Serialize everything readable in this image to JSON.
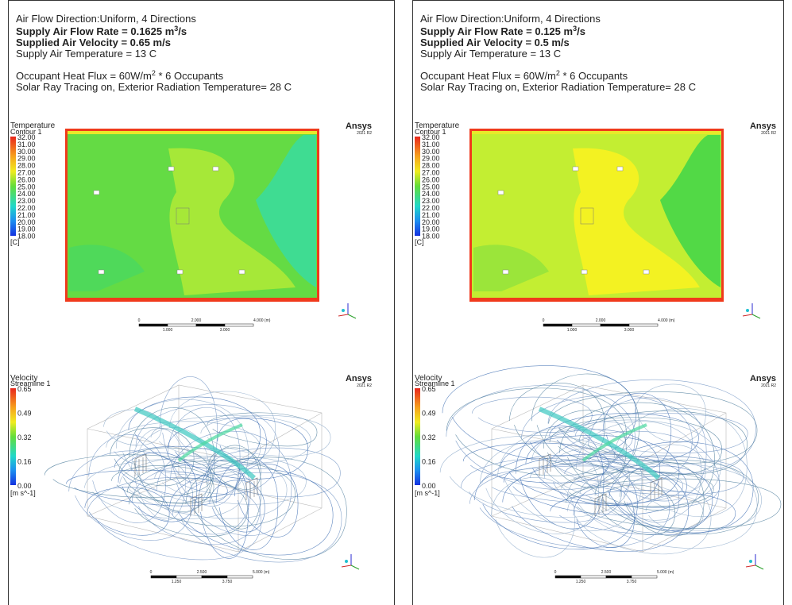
{
  "panels": [
    {
      "header": {
        "direction": "Air Flow Direction:Uniform, 4 Directions",
        "flow_rate": {
          "text": "Supply Air Flow Rate = 0.1625 m",
          "sup": "3",
          "suffix": "/s"
        },
        "velocity": "Supplied Air Velocity = 0.65 m/s",
        "temperature": "Supply Air Temperature = 13 C",
        "heat_flux": {
          "text": "Occupant Heat Flux = 60W/m",
          "sup": "2",
          "suffix": "  * 6 Occupants"
        },
        "solar": "Solar Ray Tracing on, Exterior Radiation Temperature= 28 C"
      },
      "temperature_plot": {
        "title": "Temperature",
        "subtitle": "Contour 1",
        "legend": [
          "32.00",
          "31.00",
          "30.00",
          "29.00",
          "28.00",
          "27.00",
          "26.00",
          "25.00",
          "24.00",
          "23.00",
          "22.00",
          "21.00",
          "20.00",
          "19.00",
          "18.00"
        ],
        "unit": "[C]",
        "brand": "Ansys",
        "version": "2021 R2",
        "scale": {
          "top": [
            "0",
            "2.000",
            "4.000 (m)"
          ],
          "bottom": [
            "1.000",
            "3.000"
          ]
        }
      },
      "velocity_plot": {
        "title": "Velocity",
        "subtitle": "Streamline 1",
        "legend": [
          "0.65",
          "0.49",
          "0.32",
          "0.16",
          "0.00"
        ],
        "unit": "[m s^-1]",
        "brand": "Ansys",
        "version": "2021 R2",
        "scale": {
          "top": [
            "0",
            "2.500",
            "5.000 (m)"
          ],
          "bottom": [
            "1.250",
            "3.750"
          ]
        }
      }
    },
    {
      "header": {
        "direction": "Air Flow Direction:Uniform, 4 Directions",
        "flow_rate": {
          "text": "Supply Air Flow Rate = 0.125 m",
          "sup": "3",
          "suffix": "/s"
        },
        "velocity": "Supplied Air Velocity = 0.5 m/s",
        "temperature": "Supply Air Temperature = 13 C",
        "heat_flux": {
          "text": "Occupant Heat Flux = 60W/m",
          "sup": "2",
          "suffix": "  * 6 Occupants"
        },
        "solar": "Solar Ray Tracing on, Exterior Radiation Temperature= 28 C"
      },
      "temperature_plot": {
        "title": "Temperature",
        "subtitle": "Contour 1",
        "legend": [
          "32.00",
          "31.00",
          "30.00",
          "29.00",
          "28.00",
          "27.00",
          "26.00",
          "25.00",
          "24.00",
          "23.00",
          "22.00",
          "21.00",
          "20.00",
          "19.00",
          "18.00"
        ],
        "unit": "[C]",
        "brand": "Ansys",
        "version": "2021 R2",
        "scale": {
          "top": [
            "0",
            "2.000",
            "4.000 (m)"
          ],
          "bottom": [
            "1.000",
            "3.000"
          ]
        }
      },
      "velocity_plot": {
        "title": "Velocity",
        "subtitle": "Streamline 1",
        "legend": [
          "0.65",
          "0.49",
          "0.32",
          "0.16",
          "0.00"
        ],
        "unit": "[m s^-1]",
        "brand": "Ansys",
        "version": "2021 R2",
        "scale": {
          "top": [
            "0",
            "2.500",
            "5.000 (m)"
          ],
          "bottom": [
            "1.250",
            "3.750"
          ]
        }
      }
    }
  ]
}
